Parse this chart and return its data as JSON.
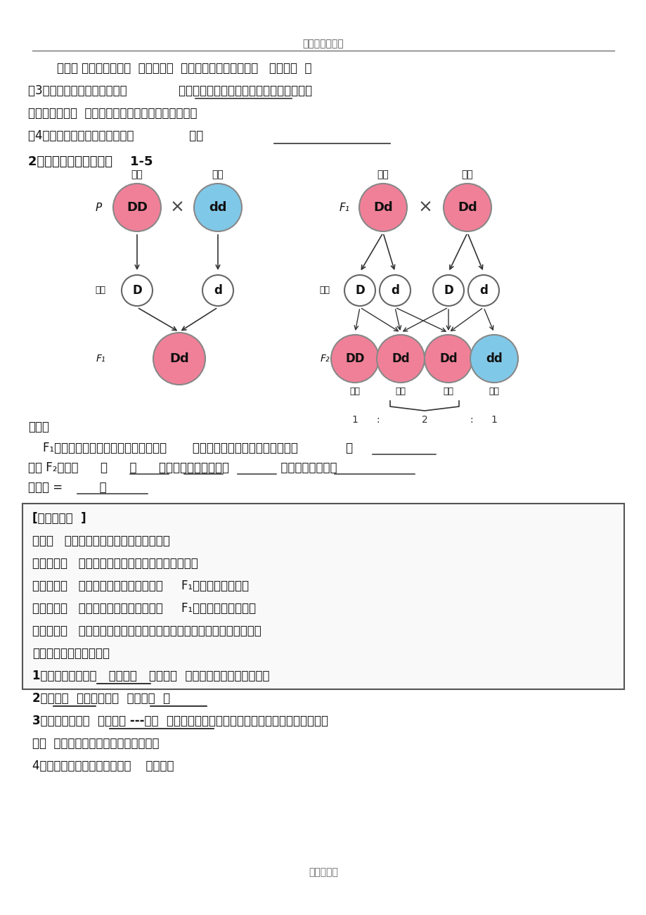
{
  "page_title": "高中生物必修二",
  "page_footer": "生物必修二",
  "bg_color": "#ffffff",
  "line1": "    杂合体 表现出来的性状  不稳定遗传  ，自交或测交后代均发生   性状分离  。",
  "line2": "（3）生物体在形成生殖细胞（              ）时，成对的遗传因子彼此分离，分别进入",
  "line3": "不同的配子中。  配子中只含每对遗传因子中的一个。",
  "line4": "（4）受精时，雌雄配子的结合是               的。",
  "line5": "2、观察遗传分析图解图    1-5",
  "think_line": "思考：",
  "think_text1": "    F₁形成的雌雄配子种类、比值都相等。       两种雌配子和两种雄配子结合机会             ，",
  "think_text2": "因此 F₂便有了      、      、      三种基因组合，比例为              ，在性状上则近于",
  "think_text3": "高：矮 =          。",
  "box_title": "[记忆节节清  ]",
  "box_line0": "性状：   生物体形态特征和生理特征的总称",
  "box_line1": "相对性状：   一种生物的同一性状的不同表现类型。",
  "box_line2": "显性性状：   具有相对性状的亲本杂交，     F₁显现出来的性状。",
  "box_line3": "隐性性状：   具有相对性状的亲本杂交，     F₁不显现出来的性状。",
  "box_line4": "性状分离：   杂种的自交后代中，同时出现显性性状和隐性性状的现象。",
  "box_line5": "孟德尔对分离现象的解释",
  "box_line6": "1、生物的性状是由   遗传因子   决定的。  遗传因子不融合、不消失。",
  "box_line7": "2、体细胞  中遗传因子是  成对存在  的",
  "box_line8": "3、生物体在形成  生殖细胞 ---配子  时，成对的遗传因子彼此分离，分别进入不同的配子",
  "box_line9": "中。  配子中只含每对遗传因子的一个。",
  "box_line10": "4、受精时，雌雄配子的结合是    随机的。",
  "pink_color": "#f08098",
  "blue_color": "#80c8e8",
  "pink_light": "#f4b0c0",
  "blue_light": "#a8d8f0"
}
